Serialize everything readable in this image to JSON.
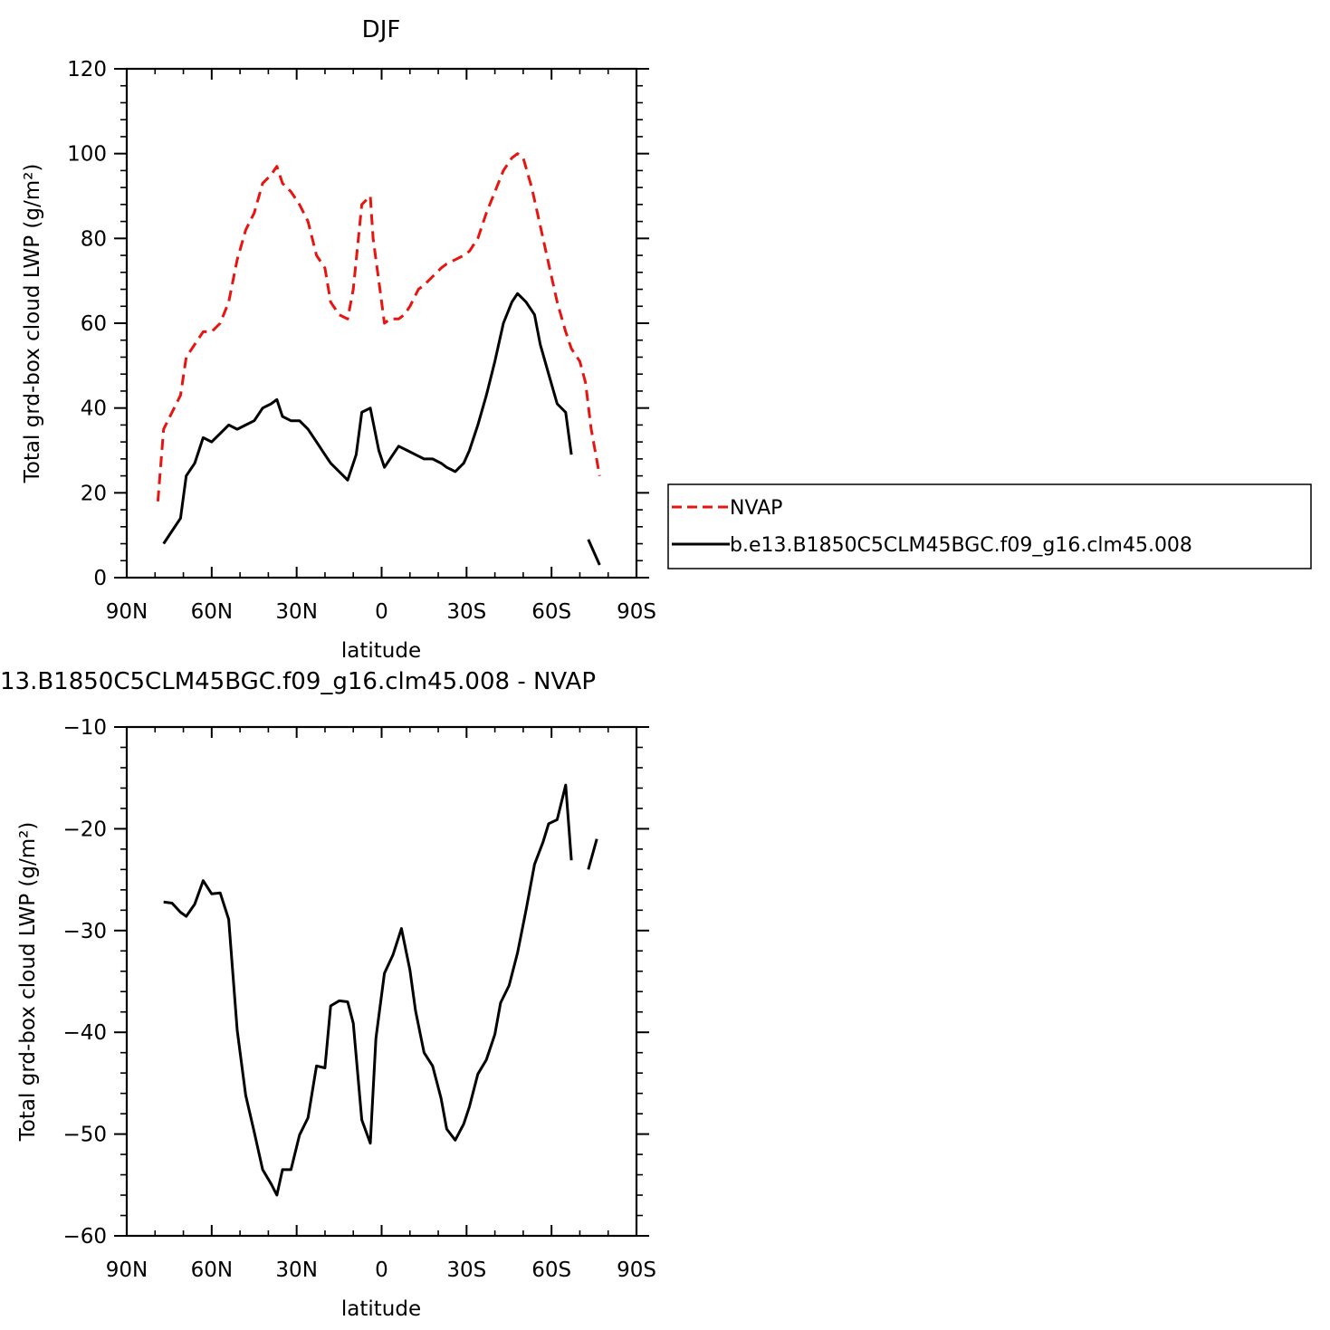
{
  "chart_data": [
    {
      "type": "line",
      "title": "DJF",
      "xlabel": "latitude",
      "ylabel": "Total grd-box cloud LWP (g/m²)",
      "xlim": [
        -90,
        90
      ],
      "ylim": [
        0,
        120
      ],
      "x_ticks": [
        -90,
        -60,
        -30,
        0,
        30,
        60,
        90
      ],
      "x_tick_labels": [
        "90N",
        "60N",
        "30N",
        "0",
        "30S",
        "60S",
        "90S"
      ],
      "y_ticks": [
        0,
        20,
        40,
        60,
        80,
        100,
        120
      ],
      "y_tick_labels": [
        "0",
        "20",
        "40",
        "60",
        "80",
        "100",
        "120"
      ],
      "grid": false,
      "legend_position": "right",
      "series": [
        {
          "name": "NVAP",
          "color": "#e8140f",
          "style": "dashed",
          "points": [
            [
              -79,
              18
            ],
            [
              -77,
              35
            ],
            [
              -74,
              39
            ],
            [
              -71,
              43
            ],
            [
              -69,
              52
            ],
            [
              -66,
              55
            ],
            [
              -63,
              58
            ],
            [
              -60,
              58
            ],
            [
              -57,
              60
            ],
            [
              -54,
              65
            ],
            [
              -51,
              75
            ],
            [
              -48,
              82
            ],
            [
              -45,
              86
            ],
            [
              -42,
              93
            ],
            [
              -39,
              95
            ],
            [
              -37,
              97
            ],
            [
              -35,
              93
            ],
            [
              -32,
              91
            ],
            [
              -29,
              88
            ],
            [
              -26,
              84
            ],
            [
              -23,
              76
            ],
            [
              -20,
              73
            ],
            [
              -18,
              65
            ],
            [
              -15,
              62
            ],
            [
              -12,
              61
            ],
            [
              -10,
              68
            ],
            [
              -7,
              88
            ],
            [
              -4,
              90
            ],
            [
              -3,
              80
            ],
            [
              -1,
              70
            ],
            [
              1,
              60
            ],
            [
              3,
              61
            ],
            [
              6,
              61
            ],
            [
              8,
              62
            ],
            [
              10,
              64
            ],
            [
              13,
              68
            ],
            [
              15,
              69
            ],
            [
              18,
              71
            ],
            [
              21,
              73
            ],
            [
              23,
              74
            ],
            [
              26,
              75
            ],
            [
              29,
              76
            ],
            [
              31,
              77
            ],
            [
              34,
              80
            ],
            [
              37,
              86
            ],
            [
              40,
              91
            ],
            [
              43,
              96
            ],
            [
              46,
              99
            ],
            [
              48,
              100
            ],
            [
              50,
              99
            ],
            [
              53,
              92
            ],
            [
              56,
              83
            ],
            [
              59,
              74
            ],
            [
              62,
              65
            ],
            [
              65,
              58
            ],
            [
              67,
              54
            ],
            [
              70,
              51
            ],
            [
              72,
              46
            ],
            [
              74,
              35
            ],
            [
              77,
              24
            ]
          ]
        },
        {
          "name": "b.e13.B1850C5CLM45BGC.f09_g16.clm45.008",
          "color": "#000000",
          "style": "solid",
          "segments": [
            [
              [
                -77,
                8
              ],
              [
                -74,
                11
              ],
              [
                -71,
                14
              ],
              [
                -69,
                24
              ],
              [
                -66,
                27
              ],
              [
                -63,
                33
              ],
              [
                -60,
                32
              ],
              [
                -57,
                34
              ],
              [
                -54,
                36
              ],
              [
                -51,
                35
              ],
              [
                -48,
                36
              ],
              [
                -45,
                37
              ],
              [
                -42,
                40
              ],
              [
                -39,
                41
              ],
              [
                -37,
                42
              ],
              [
                -35,
                38
              ],
              [
                -32,
                37
              ],
              [
                -29,
                37
              ],
              [
                -26,
                35
              ],
              [
                -23,
                32
              ],
              [
                -20,
                29
              ],
              [
                -18,
                27
              ],
              [
                -15,
                25
              ],
              [
                -12,
                23
              ],
              [
                -9,
                29
              ],
              [
                -7,
                39
              ],
              [
                -4,
                40
              ],
              [
                -1,
                30
              ],
              [
                1,
                26
              ],
              [
                4,
                29
              ],
              [
                6,
                31
              ],
              [
                9,
                30
              ],
              [
                12,
                29
              ],
              [
                15,
                28
              ],
              [
                18,
                28
              ],
              [
                21,
                27
              ],
              [
                23,
                26
              ],
              [
                26,
                25
              ],
              [
                29,
                27
              ],
              [
                31,
                30
              ],
              [
                34,
                36
              ],
              [
                37,
                43
              ],
              [
                40,
                51
              ],
              [
                43,
                60
              ],
              [
                46,
                65
              ],
              [
                48,
                67
              ],
              [
                51,
                65
              ],
              [
                54,
                62
              ],
              [
                56,
                55
              ],
              [
                59,
                48
              ],
              [
                62,
                41
              ],
              [
                65,
                39
              ],
              [
                67,
                29
              ]
            ],
            [
              [
                73,
                9
              ],
              [
                77,
                3
              ]
            ]
          ]
        }
      ]
    },
    {
      "type": "line",
      "title": "13.B1850C5CLM45BGC.f09_g16.clm45.008 - NVAP",
      "xlabel": "latitude",
      "ylabel": "Total grd-box cloud LWP (g/m²)",
      "xlim": [
        -90,
        90
      ],
      "ylim": [
        -60,
        -10
      ],
      "x_ticks": [
        -90,
        -60,
        -30,
        0,
        30,
        60,
        90
      ],
      "x_tick_labels": [
        "90N",
        "60N",
        "30N",
        "0",
        "30S",
        "60S",
        "90S"
      ],
      "y_ticks": [
        -60,
        -50,
        -40,
        -30,
        -20,
        -10
      ],
      "y_tick_labels": [
        "−60",
        "−50",
        "−40",
        "−30",
        "−20",
        "−10"
      ],
      "grid": false,
      "series": [
        {
          "color": "#000000",
          "style": "solid",
          "segments": [
            [
              [
                -77,
                -27.2
              ],
              [
                -74,
                -27.3
              ],
              [
                -71,
                -28.2
              ],
              [
                -69,
                -28.6
              ],
              [
                -66,
                -27.4
              ],
              [
                -63,
                -25.1
              ],
              [
                -60,
                -26.4
              ],
              [
                -57,
                -26.3
              ],
              [
                -54,
                -28.9
              ],
              [
                -51,
                -39.8
              ],
              [
                -48,
                -46.2
              ],
              [
                -45,
                -49.8
              ],
              [
                -42,
                -53.5
              ],
              [
                -39,
                -54.9
              ],
              [
                -37,
                -56.0
              ],
              [
                -35,
                -53.5
              ],
              [
                -32,
                -53.5
              ],
              [
                -29,
                -50.1
              ],
              [
                -26,
                -48.4
              ],
              [
                -23,
                -43.3
              ],
              [
                -20,
                -43.5
              ],
              [
                -18,
                -37.4
              ],
              [
                -15,
                -36.9
              ],
              [
                -12,
                -37.0
              ],
              [
                -10,
                -39.1
              ],
              [
                -7,
                -48.6
              ],
              [
                -4,
                -50.9
              ],
              [
                -2,
                -40.6
              ],
              [
                1,
                -34.2
              ],
              [
                4,
                -32.4
              ],
              [
                7,
                -29.8
              ],
              [
                10,
                -33.9
              ],
              [
                12,
                -37.9
              ],
              [
                15,
                -42.0
              ],
              [
                18,
                -43.3
              ],
              [
                21,
                -46.5
              ],
              [
                23,
                -49.5
              ],
              [
                26,
                -50.6
              ],
              [
                29,
                -49.0
              ],
              [
                31,
                -47.3
              ],
              [
                34,
                -44.1
              ],
              [
                37,
                -42.7
              ],
              [
                40,
                -40.2
              ],
              [
                42,
                -37.1
              ],
              [
                45,
                -35.4
              ],
              [
                48,
                -32.2
              ],
              [
                51,
                -28.0
              ],
              [
                54,
                -23.5
              ],
              [
                57,
                -21.3
              ],
              [
                59,
                -19.5
              ],
              [
                62,
                -19.1
              ],
              [
                65,
                -15.7
              ],
              [
                67,
                -23.1
              ]
            ],
            [
              [
                73,
                -24.0
              ],
              [
                76,
                -21.0
              ]
            ]
          ]
        }
      ]
    }
  ]
}
